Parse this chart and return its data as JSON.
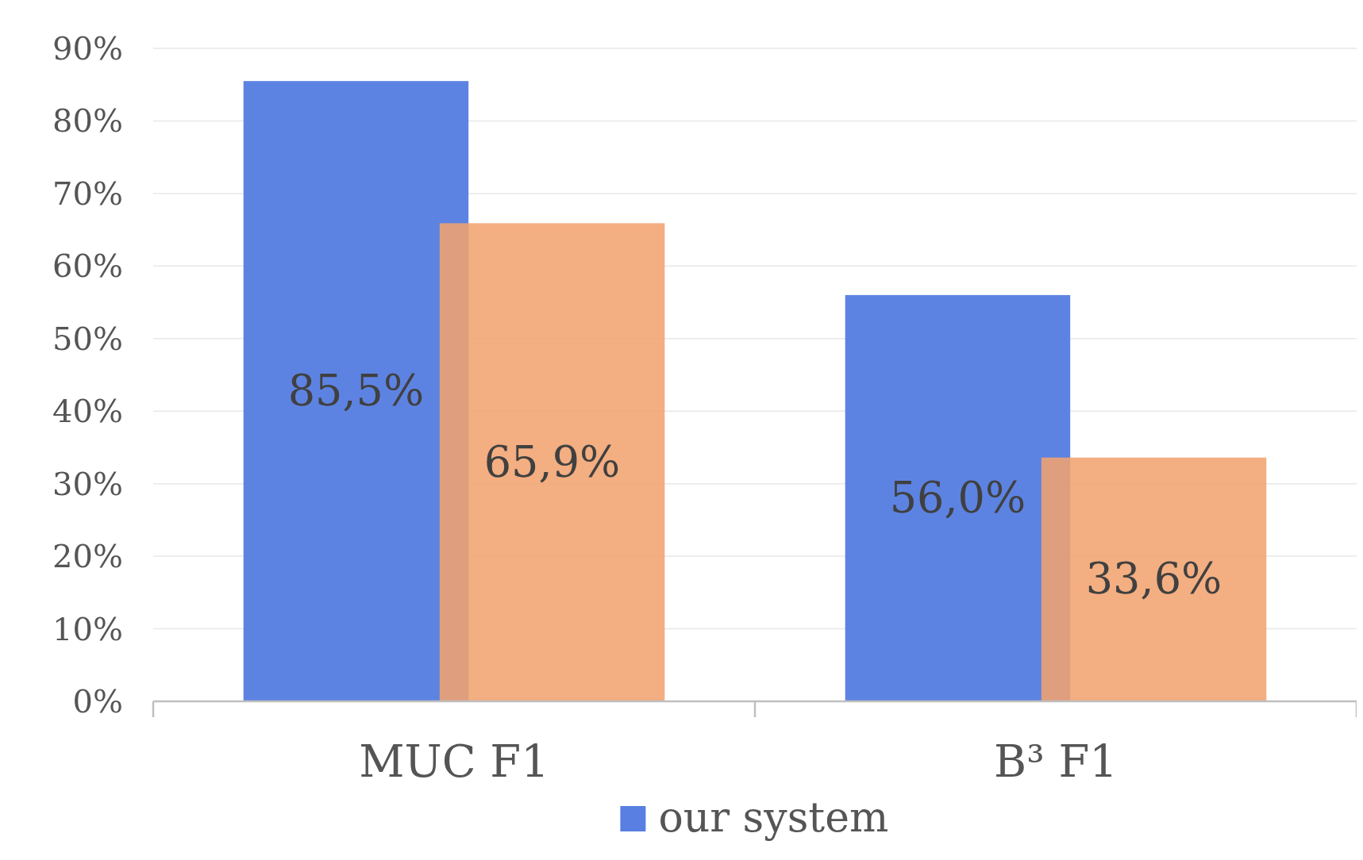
{
  "chart_data": {
    "type": "bar",
    "categories": [
      "MUC F1",
      "B³ F1"
    ],
    "series": [
      {
        "name": "our system",
        "color": "#587fe1",
        "values": [
          85.5,
          56.0
        ],
        "value_labels": [
          "85,5%",
          "56,0%"
        ]
      },
      {
        "color": "#f1a36f",
        "values": [
          65.9,
          33.6
        ],
        "value_labels": [
          "65,9%",
          "33,6%"
        ]
      }
    ],
    "ylim": [
      0,
      90
    ],
    "yticks": [
      {
        "value": 0,
        "label": "0%"
      },
      {
        "value": 10,
        "label": "10%"
      },
      {
        "value": 20,
        "label": "20%"
      },
      {
        "value": 30,
        "label": "30%"
      },
      {
        "value": 40,
        "label": "40%"
      },
      {
        "value": 50,
        "label": "50%"
      },
      {
        "value": 60,
        "label": "60%"
      },
      {
        "value": 70,
        "label": "70%"
      },
      {
        "value": 80,
        "label": "80%"
      },
      {
        "value": 90,
        "label": "90%"
      }
    ],
    "grid": "y",
    "legend": "bottom"
  }
}
